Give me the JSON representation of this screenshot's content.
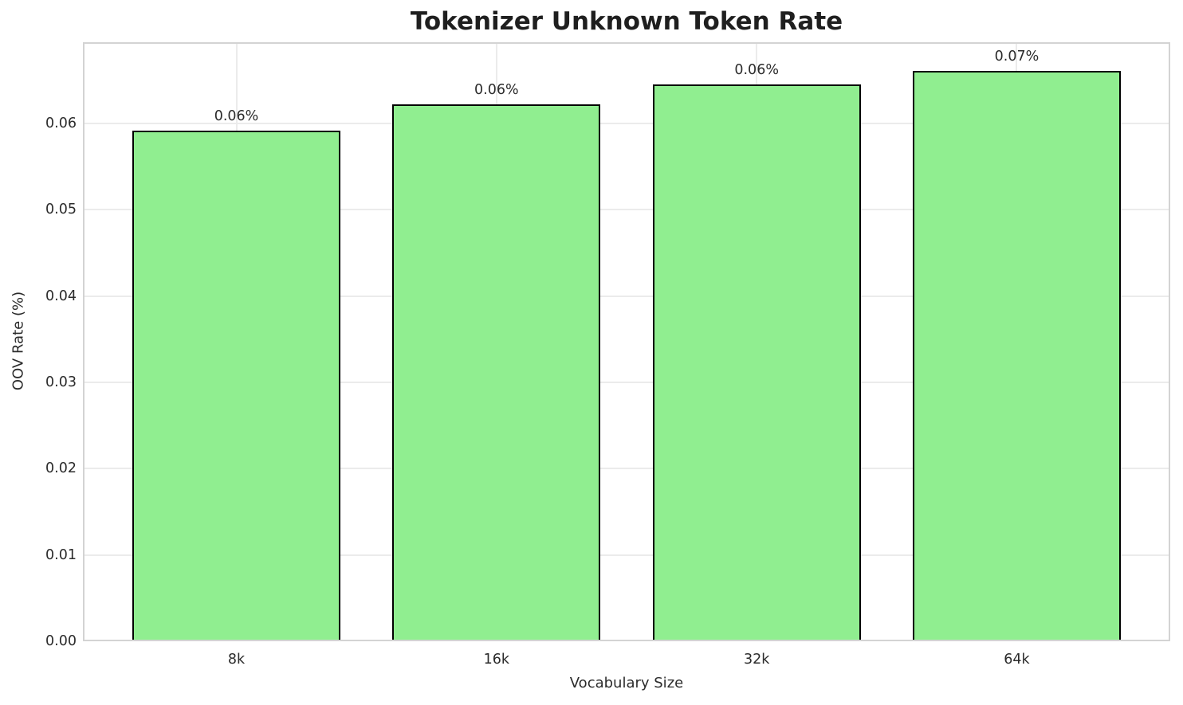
{
  "chart_data": {
    "type": "bar",
    "title": "Tokenizer Unknown Token Rate",
    "xlabel": "Vocabulary Size",
    "ylabel": "OOV Rate (%)",
    "categories": [
      "8k",
      "16k",
      "32k",
      "64k"
    ],
    "values": [
      0.0592,
      0.0622,
      0.0645,
      0.0661
    ],
    "bar_value_labels": [
      "0.06%",
      "0.06%",
      "0.06%",
      "0.07%"
    ],
    "yticks": {
      "values": [
        0.0,
        0.01,
        0.02,
        0.03,
        0.04,
        0.05,
        0.06
      ],
      "labels": [
        "0.00",
        "0.01",
        "0.02",
        "0.03",
        "0.04",
        "0.05",
        "0.06"
      ]
    },
    "ylim": [
      0,
      0.0694
    ],
    "grid": true,
    "legend": null,
    "colors": {
      "bar_fill": "#90EE90",
      "bar_edge": "#000000",
      "grid": "#ebebeb",
      "spine": "#d3d3d3",
      "text": "#2b2b2b",
      "title": "#1f1f1f"
    }
  }
}
